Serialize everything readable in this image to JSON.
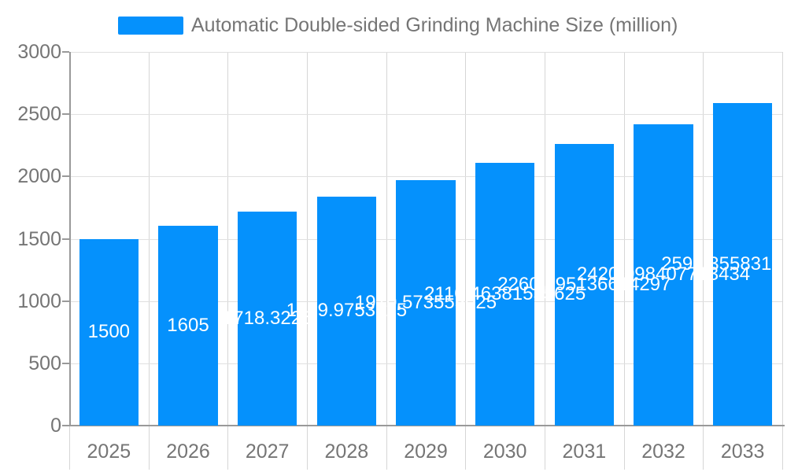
{
  "legend": {
    "label": "Automatic Double-sided Grinding Machine Size (million)",
    "color": "#0591fc"
  },
  "chart_data": {
    "type": "bar",
    "title": "Automatic Double-sided Grinding Machine Size (million)",
    "categories": [
      "2025",
      "2026",
      "2027",
      "2028",
      "2029",
      "2030",
      "2031",
      "2032",
      "2033"
    ],
    "values": [
      1500,
      1605,
      1718.3225,
      1839.9753125,
      1970.573555025,
      2110.46381555625,
      2260.495136614297,
      2420.098407713434,
      2591.35583181434
    ],
    "value_labels": [
      "1500",
      "1605",
      "1718.3225",
      "1839.9753125",
      "1970.573555025",
      "2110.46381555625",
      "2260.495136614297",
      "2420.098407713434",
      "2591.35583181434"
    ],
    "xlabel": "",
    "ylabel": "",
    "ylim": [
      0,
      3000
    ],
    "y_ticks": [
      0,
      500,
      1000,
      1500,
      2000,
      2500,
      3000
    ],
    "grid": true,
    "legend_position": "top",
    "bar_color": "#0591fc",
    "value_label_color": "#ffffff",
    "axis_text_color": "#757575",
    "axis_line_color": "#999999",
    "h_grid_color": "#e0e0e0",
    "v_grid_color": "#d6d6d6"
  }
}
